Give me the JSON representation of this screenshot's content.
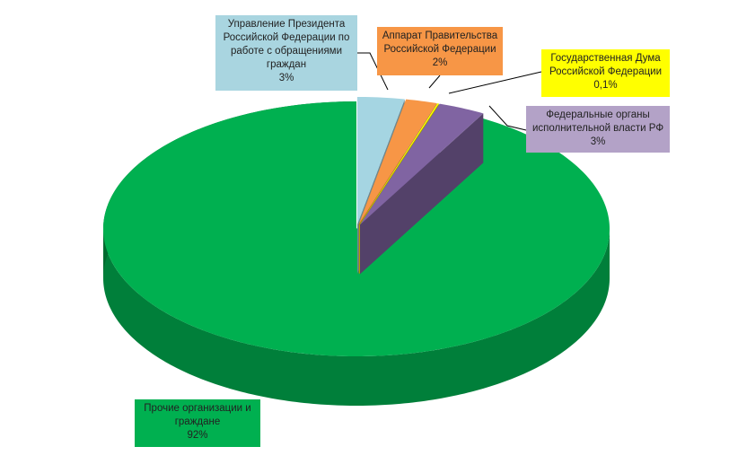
{
  "chart_data": {
    "type": "pie3d",
    "categories": [
      "Управление Президента Российской Федерации по работе с обращениями граждан",
      "Аппарат Правительства Российской Федерации",
      "Государственная Дума Российской Федерации",
      "Федеральные органы исполнительной власти РФ",
      "Прочие организации и граждане"
    ],
    "values": [
      3,
      2,
      0.1,
      3,
      92
    ],
    "value_labels": [
      "3%",
      "2%",
      "0,1%",
      "3%",
      "92%"
    ],
    "colors": [
      "#a5d5e2",
      "#f79646",
      "#ffff00",
      "#8064a2",
      "#00b050"
    ]
  }
}
